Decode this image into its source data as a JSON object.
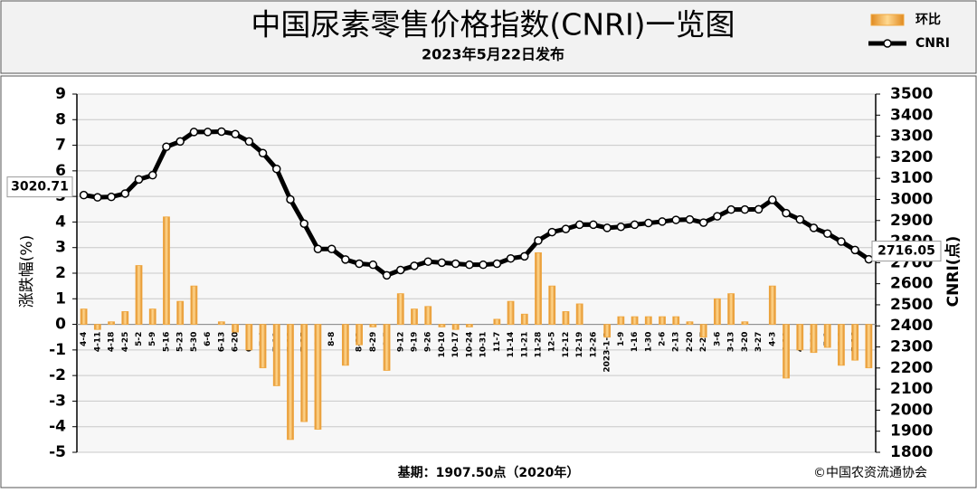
{
  "chart_data": {
    "type": "combo",
    "title": "中国尿素零售价格指数(CNRI)一览图",
    "subtitle": "2023年5月22日发布",
    "y_label": "涨跌幅(%)",
    "y2_label": "CNRI(点)",
    "base_note": "基期：1907.50点（2020年）",
    "source": "©中国农资流通协会",
    "grid": true,
    "legend": "top-right",
    "categories": [
      "4-4",
      "4-11",
      "4-18",
      "4-25",
      "5-2",
      "5-9",
      "5-16",
      "5-23",
      "5-30",
      "6-6",
      "6-13",
      "6-20",
      "6-27",
      "7-4",
      "7-11",
      "7-18",
      "7-25",
      "8-1",
      "8-8",
      "8-15",
      "8-22",
      "8-29",
      "9-5",
      "9-12",
      "9-19",
      "9-26",
      "10-10",
      "10-17",
      "10-24",
      "10-31",
      "11-7",
      "11-14",
      "11-21",
      "11-28",
      "12-5",
      "12-12",
      "12-19",
      "12-26",
      "2023-1-2",
      "1-9",
      "1-16",
      "1-30",
      "2-6",
      "2-13",
      "2-20",
      "2-27",
      "3-6",
      "3-13",
      "3-20",
      "3-27",
      "4-3",
      "4-10",
      "4-17",
      "4-24",
      "5-1",
      "5-8",
      "5-16",
      "5-22"
    ],
    "series": [
      {
        "name": "环比",
        "type": "bar",
        "color": "#f0a840",
        "values": [
          0.6,
          -0.2,
          0.1,
          0.5,
          2.3,
          0.6,
          4.2,
          0.9,
          1.5,
          0.0,
          0.1,
          -0.3,
          -1.0,
          -1.7,
          -2.4,
          -4.5,
          -3.8,
          -4.1,
          0.0,
          -1.6,
          -0.8,
          -0.1,
          -1.8,
          1.2,
          0.6,
          0.7,
          -0.1,
          -0.2,
          -0.1,
          0.0,
          0.2,
          0.9,
          0.4,
          2.8,
          1.5,
          0.5,
          0.8,
          0.0,
          -0.5,
          0.3,
          0.3,
          0.3,
          0.3,
          0.3,
          0.1,
          -0.5,
          1.0,
          1.2,
          0.1,
          0.0,
          1.5,
          -2.1,
          -1.0,
          -1.1,
          -0.9,
          -1.6,
          -1.4,
          -1.7
        ]
      },
      {
        "name": "CNRI",
        "type": "line",
        "axis": "y2",
        "color": "#000000",
        "values": [
          3020.71,
          3010,
          3012,
          3028,
          3095,
          3115,
          3250,
          3275,
          3320,
          3320,
          3322,
          3310,
          3275,
          3220,
          3145,
          3000,
          2885,
          2765,
          2765,
          2715,
          2695,
          2690,
          2640,
          2665,
          2685,
          2705,
          2700,
          2695,
          2690,
          2690,
          2695,
          2720,
          2730,
          2805,
          2845,
          2860,
          2880,
          2880,
          2865,
          2870,
          2880,
          2888,
          2895,
          2903,
          2905,
          2890,
          2920,
          2952,
          2952,
          2953,
          2998,
          2935,
          2905,
          2865,
          2838,
          2800,
          2760,
          2716.05
        ]
      }
    ],
    "ylim": [
      -5,
      9
    ],
    "yticks": [
      -5,
      -4,
      -3,
      -2,
      -1,
      0,
      1,
      2,
      3,
      4,
      5,
      6,
      7,
      8,
      9
    ],
    "y2lim": [
      1800,
      3500
    ],
    "y2ticks": [
      1800,
      1900,
      2000,
      2100,
      2200,
      2300,
      2400,
      2500,
      2600,
      2700,
      2800,
      2900,
      3000,
      3100,
      3200,
      3300,
      3400,
      3500
    ]
  }
}
